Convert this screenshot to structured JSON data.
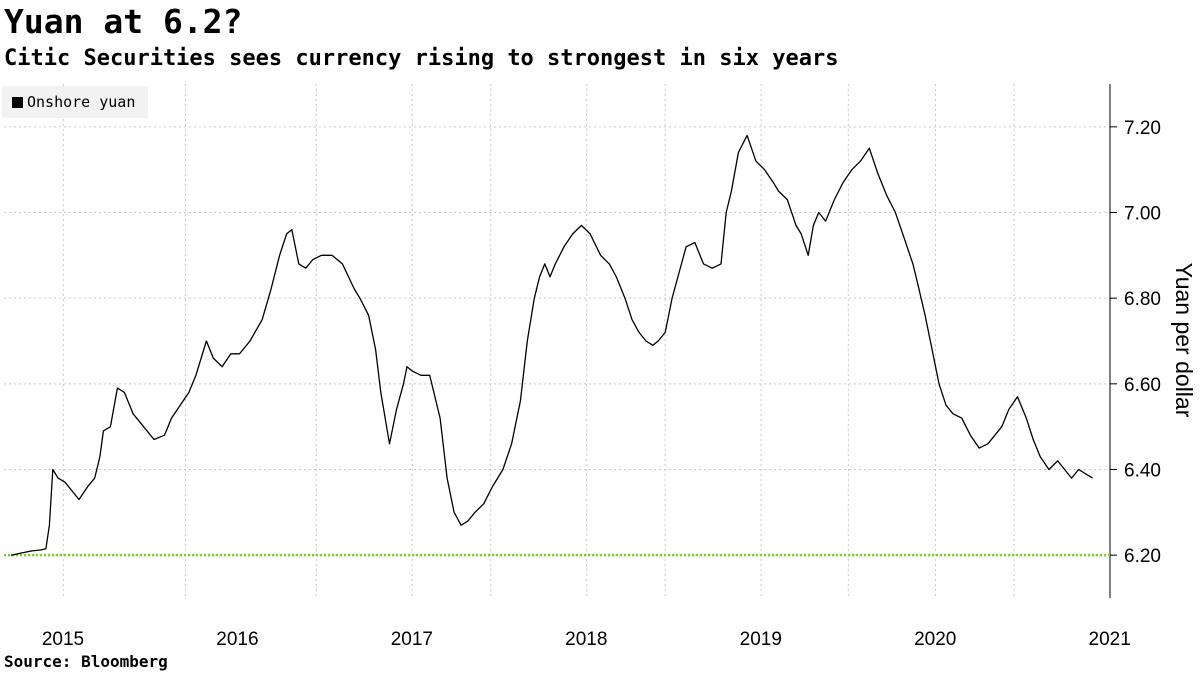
{
  "header": {
    "title": "Yuan at 6.2?",
    "subtitle": "Citic Securities sees currency rising to strongest in six years"
  },
  "footer": {
    "source": "Source: Bloomberg"
  },
  "colors": {
    "series": "#000000",
    "target_line": "#7bd31e",
    "grid": "#c8c8c8",
    "legend_bg": "#f2f2f2"
  },
  "chart_data": {
    "type": "line",
    "title": "Yuan at 6.2?",
    "subtitle": "Citic Securities sees currency rising to strongest in six years",
    "xlabel": "",
    "ylabel": "Yuan per dollar",
    "legend_position": "top-left",
    "grid": true,
    "xlim": [
      2014.96,
      2021.3
    ],
    "ylim": [
      6.1,
      7.3
    ],
    "y_ticks": [
      6.2,
      6.4,
      6.6,
      6.8,
      7.0,
      7.2
    ],
    "y_tick_labels": [
      "6.20",
      "6.40",
      "6.60",
      "6.80",
      "7.00",
      "7.20"
    ],
    "x_ticks": [
      2015,
      2016,
      2017,
      2018,
      2019,
      2020,
      2021
    ],
    "x_tick_labels": [
      "2015",
      "2016",
      "2017",
      "2018",
      "2019",
      "2020",
      "2021"
    ],
    "x_grid": [
      2015.3,
      2016.0,
      2016.75,
      2017.3,
      2017.75,
      2018.3,
      2018.75,
      2019.3,
      2019.8,
      2020.3,
      2020.75
    ],
    "reference_line": {
      "y": 6.2,
      "style": "dotted"
    },
    "series": [
      {
        "name": "Onshore yuan",
        "x": [
          2015.0,
          2015.06,
          2015.12,
          2015.17,
          2015.2,
          2015.22,
          2015.24,
          2015.27,
          2015.31,
          2015.35,
          2015.39,
          2015.44,
          2015.48,
          2015.51,
          2015.53,
          2015.57,
          2015.61,
          2015.65,
          2015.7,
          2015.76,
          2015.82,
          2015.88,
          2015.92,
          2015.97,
          2016.02,
          2016.06,
          2016.12,
          2016.16,
          2016.21,
          2016.26,
          2016.31,
          2016.37,
          2016.44,
          2016.49,
          2016.54,
          2016.58,
          2016.61,
          2016.65,
          2016.69,
          2016.73,
          2016.78,
          2016.84,
          2016.9,
          2016.97,
          2017.0,
          2017.05,
          2017.09,
          2017.12,
          2017.17,
          2017.21,
          2017.25,
          2017.27,
          2017.3,
          2017.35,
          2017.4,
          2017.46,
          2017.5,
          2017.54,
          2017.58,
          2017.62,
          2017.66,
          2017.71,
          2017.76,
          2017.82,
          2017.87,
          2017.92,
          2017.96,
          2018.0,
          2018.03,
          2018.06,
          2018.09,
          2018.12,
          2018.17,
          2018.22,
          2018.27,
          2018.32,
          2018.38,
          2018.43,
          2018.47,
          2018.52,
          2018.56,
          2018.6,
          2018.64,
          2018.68,
          2018.71,
          2018.75,
          2018.79,
          2018.83,
          2018.87,
          2018.92,
          2018.97,
          2019.02,
          2019.07,
          2019.1,
          2019.13,
          2019.17,
          2019.22,
          2019.27,
          2019.32,
          2019.37,
          2019.4,
          2019.45,
          2019.5,
          2019.53,
          2019.57,
          2019.6,
          2019.63,
          2019.67,
          2019.72,
          2019.77,
          2019.82,
          2019.87,
          2019.92,
          2019.97,
          2020.02,
          2020.07,
          2020.12,
          2020.17,
          2020.2,
          2020.24,
          2020.28,
          2020.32,
          2020.36,
          2020.4,
          2020.45,
          2020.5,
          2020.55,
          2020.6,
          2020.64,
          2020.68,
          2020.72,
          2020.77,
          2020.82,
          2020.86,
          2020.9,
          2020.95,
          2021.0,
          2021.04,
          2021.08,
          2021.12,
          2021.16,
          2021.2
        ],
        "y": [
          6.2,
          6.205,
          6.21,
          6.212,
          6.215,
          6.27,
          6.4,
          6.38,
          6.37,
          6.35,
          6.33,
          6.36,
          6.38,
          6.43,
          6.49,
          6.5,
          6.59,
          6.58,
          6.53,
          6.5,
          6.47,
          6.48,
          6.52,
          6.55,
          6.58,
          6.62,
          6.7,
          6.66,
          6.64,
          6.67,
          6.67,
          6.7,
          6.75,
          6.82,
          6.9,
          6.95,
          6.96,
          6.88,
          6.87,
          6.89,
          6.9,
          6.9,
          6.88,
          6.82,
          6.8,
          6.76,
          6.68,
          6.58,
          6.46,
          6.54,
          6.6,
          6.64,
          6.63,
          6.62,
          6.62,
          6.52,
          6.38,
          6.3,
          6.27,
          6.28,
          6.3,
          6.32,
          6.36,
          6.4,
          6.46,
          6.56,
          6.7,
          6.8,
          6.85,
          6.88,
          6.85,
          6.88,
          6.92,
          6.95,
          6.97,
          6.95,
          6.9,
          6.88,
          6.85,
          6.8,
          6.75,
          6.72,
          6.7,
          6.69,
          6.7,
          6.72,
          6.8,
          6.86,
          6.92,
          6.93,
          6.88,
          6.87,
          6.88,
          7.0,
          7.05,
          7.14,
          7.18,
          7.12,
          7.1,
          7.07,
          7.05,
          7.03,
          6.97,
          6.95,
          6.9,
          6.97,
          7.0,
          6.98,
          7.03,
          7.07,
          7.1,
          7.12,
          7.15,
          7.09,
          7.04,
          7.0,
          6.94,
          6.88,
          6.83,
          6.76,
          6.68,
          6.6,
          6.55,
          6.53,
          6.52,
          6.48,
          6.45,
          6.46,
          6.48,
          6.5,
          6.54,
          6.57,
          6.52,
          6.47,
          6.43,
          6.4,
          6.42,
          6.4,
          6.38,
          6.4,
          6.39,
          6.38
        ]
      }
    ]
  }
}
